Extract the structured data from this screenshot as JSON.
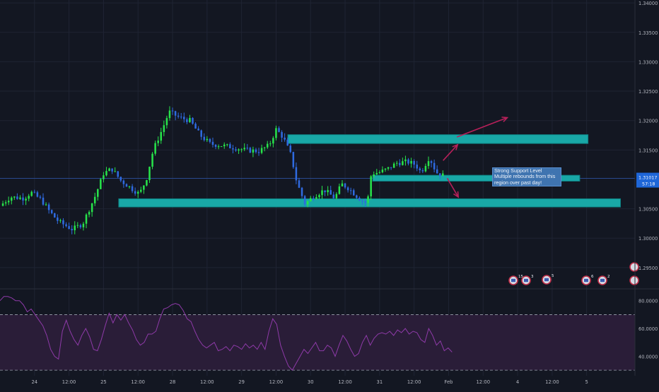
{
  "colors": {
    "background": "#131722",
    "grid": "#1f2433",
    "bull": "#27e34a",
    "bear": "#2f6ae0",
    "zone": "#19a8a7",
    "price_line": "#2a4a8f",
    "price_tag": "#1e66d8",
    "rsi_line": "#8e3aa8",
    "rsi_band": "#2a1d38",
    "arrow": "#b8205a",
    "axis_text": "#b2b5be"
  },
  "price_tag": {
    "price": "1.31017",
    "countdown": "57:18"
  },
  "note": {
    "line1": "Strong Support Level",
    "line2": "Multiple rebounds from this",
    "line3": "region over past day!"
  },
  "event_badges": [
    {
      "label": "15"
    },
    {
      "label": "3"
    },
    {
      "label": "5"
    },
    {
      "label": "6"
    },
    {
      "label": "2"
    }
  ],
  "chart_data": [
    {
      "type": "candlestick",
      "title": "",
      "ylim": [
        1.2915,
        1.3405
      ],
      "y_ticks": [
        "1.34000",
        "1.33500",
        "1.33000",
        "1.32500",
        "1.32000",
        "1.31500",
        "1.30500",
        "1.30000",
        "1.29500"
      ],
      "x_ticks": [
        "24",
        "12:00",
        "25",
        "12:00",
        "28",
        "12:00",
        "29",
        "12:00",
        "30",
        "12:00",
        "31",
        "12:00",
        "Feb",
        "12:00",
        "4",
        "12:00",
        "5"
      ],
      "time_range_days": [
        0,
        9.2
      ],
      "last_price": 1.31017,
      "close_path": [
        [
          0.0,
          1.3055
        ],
        [
          0.15,
          1.307
        ],
        [
          0.35,
          1.3068
        ],
        [
          0.45,
          1.3078
        ],
        [
          0.6,
          1.3065
        ],
        [
          0.72,
          1.3045
        ],
        [
          0.85,
          1.3028
        ],
        [
          1.05,
          1.3015
        ],
        [
          1.2,
          1.3025
        ],
        [
          1.38,
          1.3072
        ],
        [
          1.5,
          1.311
        ],
        [
          1.62,
          1.3118
        ],
        [
          1.75,
          1.3098
        ],
        [
          1.9,
          1.3085
        ],
        [
          2.02,
          1.3075
        ],
        [
          2.12,
          1.31
        ],
        [
          2.22,
          1.315
        ],
        [
          2.35,
          1.3185
        ],
        [
          2.45,
          1.3215
        ],
        [
          2.6,
          1.3205
        ],
        [
          2.75,
          1.32
        ],
        [
          2.9,
          1.3175
        ],
        [
          3.05,
          1.316
        ],
        [
          3.2,
          1.3158
        ],
        [
          3.35,
          1.3155
        ],
        [
          3.55,
          1.315
        ],
        [
          3.75,
          1.3148
        ],
        [
          3.9,
          1.3158
        ],
        [
          4.0,
          1.3185
        ],
        [
          4.1,
          1.3172
        ],
        [
          4.22,
          1.314
        ],
        [
          4.3,
          1.3095
        ],
        [
          4.42,
          1.3058
        ],
        [
          4.55,
          1.3072
        ],
        [
          4.7,
          1.3082
        ],
        [
          4.85,
          1.3068
        ],
        [
          4.95,
          1.3092
        ],
        [
          5.05,
          1.3085
        ],
        [
          5.2,
          1.3068
        ],
        [
          5.32,
          1.3058
        ],
        [
          5.38,
          1.311
        ],
        [
          5.5,
          1.3112
        ],
        [
          5.62,
          1.3118
        ],
        [
          5.75,
          1.3128
        ],
        [
          5.9,
          1.313
        ],
        [
          6.02,
          1.3125
        ],
        [
          6.1,
          1.3112
        ],
        [
          6.22,
          1.3138
        ],
        [
          6.32,
          1.3112
        ],
        [
          6.45,
          1.3105
        ]
      ],
      "zones": [
        {
          "t0": 4.17,
          "t1": 8.52,
          "y0": 1.3161,
          "y1": 1.3176
        },
        {
          "t0": 5.4,
          "t1": 8.4,
          "y0": 1.3097,
          "y1": 1.3107
        },
        {
          "t0": 1.72,
          "t1": 8.99,
          "y0": 1.3053,
          "y1": 1.3067
        }
      ],
      "arrows": [
        {
          "t0": 6.62,
          "y0": 1.3172,
          "t1": 7.35,
          "y1": 1.3205
        },
        {
          "t0": 6.42,
          "y0": 1.3132,
          "t1": 6.63,
          "y1": 1.3159
        },
        {
          "t0": 6.48,
          "y0": 1.3102,
          "t1": 6.64,
          "y1": 1.307
        }
      ]
    },
    {
      "type": "line",
      "title": "",
      "ylim": [
        26,
        88
      ],
      "y_ticks": [
        "80.0000",
        "60.0000",
        "40.0000"
      ],
      "bands": [
        70,
        30
      ],
      "values": [
        80,
        83,
        83,
        82,
        80,
        80,
        77,
        72,
        74,
        70,
        66,
        62,
        55,
        45,
        40,
        38,
        58,
        66,
        58,
        52,
        48,
        55,
        60,
        54,
        45,
        44,
        52,
        62,
        71,
        64,
        70,
        66,
        70,
        64,
        59,
        52,
        48,
        50,
        56,
        56,
        58,
        67,
        74,
        75,
        77,
        78,
        77,
        73,
        67,
        65,
        58,
        52,
        48,
        46,
        48,
        50,
        44,
        45,
        47,
        44,
        48,
        47,
        45,
        49,
        46,
        48,
        45,
        50,
        45,
        58,
        67,
        63,
        48,
        40,
        33,
        30,
        35,
        40,
        45,
        42,
        46,
        50,
        44,
        44,
        48,
        46,
        40,
        48,
        55,
        51,
        45,
        40,
        42,
        50,
        55,
        48,
        53,
        56,
        57,
        56,
        58,
        55,
        59,
        57,
        60,
        56,
        58,
        57,
        52,
        50,
        60,
        55,
        48,
        51,
        44,
        46,
        43
      ]
    }
  ]
}
